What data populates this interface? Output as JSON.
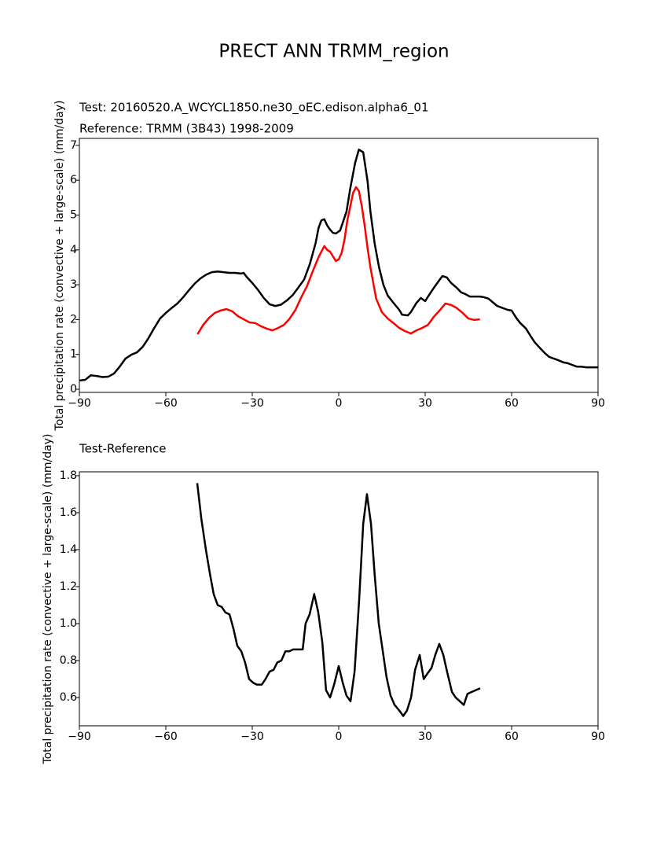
{
  "title": "PRECT ANN TRMM_region",
  "chart_data": [
    {
      "type": "line",
      "ylabel": "Total precipitation rate (convective + large-scale) (mm/day)",
      "xlim": [
        -90,
        90
      ],
      "xticks": [
        {
          "value": -90,
          "label": "−90"
        },
        {
          "value": -60,
          "label": "−60"
        },
        {
          "value": -30,
          "label": "−30"
        },
        0,
        30,
        60,
        90
      ],
      "ylim": [
        -0.09,
        7.2
      ],
      "yticks": [
        0,
        1,
        2,
        3,
        4,
        5,
        6,
        7
      ],
      "series": [
        {
          "name": "Test: 20160520.A_WCYCL1850.ne30_oEC.edison.alpha6_01",
          "color": "#000000",
          "x": [
            -90,
            -88,
            -86,
            -84,
            -82,
            -80,
            -78,
            -76,
            -74,
            -72,
            -70,
            -68,
            -66,
            -64,
            -62,
            -60,
            -58,
            -56,
            -54,
            -52,
            -50,
            -48,
            -46,
            -44,
            -42,
            -40,
            -38,
            -36,
            -34,
            -33,
            -32,
            -30,
            -28,
            -26,
            -24,
            -22,
            -20,
            -18,
            -16,
            -14,
            -12,
            -10,
            -8,
            -7,
            -6,
            -5,
            -4,
            -3,
            -2,
            -1,
            0.5,
            2.7,
            4,
            5.7,
            7,
            8.5,
            10,
            11,
            12.5,
            14,
            15.5,
            17,
            19,
            21,
            22,
            24,
            25,
            27,
            28.5,
            30,
            31,
            33,
            35,
            36,
            37.5,
            39,
            41,
            42.5,
            44,
            45.5,
            47,
            49,
            50.5,
            52,
            53.7,
            55,
            57,
            58.6,
            60,
            61.6,
            63,
            65,
            66.5,
            68,
            70,
            71.5,
            73,
            74.7,
            76,
            78,
            79.4,
            81,
            82.6,
            84,
            86,
            87.5,
            90
          ],
          "values": [
            0.25,
            0.27,
            0.4,
            0.38,
            0.35,
            0.36,
            0.45,
            0.65,
            0.88,
            0.99,
            1.06,
            1.22,
            1.47,
            1.76,
            2.03,
            2.19,
            2.33,
            2.46,
            2.64,
            2.84,
            3.03,
            3.18,
            3.29,
            3.36,
            3.38,
            3.36,
            3.34,
            3.34,
            3.32,
            3.34,
            3.23,
            3.05,
            2.85,
            2.62,
            2.44,
            2.39,
            2.43,
            2.55,
            2.7,
            2.92,
            3.15,
            3.6,
            4.2,
            4.63,
            4.85,
            4.88,
            4.7,
            4.58,
            4.49,
            4.47,
            4.56,
            5.1,
            5.76,
            6.5,
            6.88,
            6.8,
            5.98,
            5.1,
            4.17,
            3.5,
            3.0,
            2.69,
            2.48,
            2.28,
            2.14,
            2.12,
            2.21,
            2.48,
            2.62,
            2.53,
            2.66,
            2.91,
            3.14,
            3.25,
            3.21,
            3.05,
            2.91,
            2.78,
            2.73,
            2.66,
            2.66,
            2.66,
            2.64,
            2.6,
            2.48,
            2.39,
            2.33,
            2.28,
            2.26,
            2.05,
            1.9,
            1.74,
            1.54,
            1.35,
            1.17,
            1.04,
            0.93,
            0.88,
            0.84,
            0.77,
            0.75,
            0.7,
            0.65,
            0.65,
            0.63,
            0.63,
            0.63
          ]
        },
        {
          "name": "Reference: TRMM (3B43) 1998-2009",
          "color": "#ff0000",
          "x": [
            -49,
            -47,
            -45,
            -43,
            -41,
            -39,
            -37,
            -35,
            -33,
            -31,
            -29,
            -27,
            -25,
            -23,
            -21,
            -19,
            -17,
            -15,
            -13,
            -11,
            -9,
            -7,
            -5,
            -4,
            -3,
            -1,
            0,
            1,
            2,
            3,
            5,
            6,
            7,
            8,
            9,
            10,
            11,
            13,
            15,
            17,
            19,
            21,
            23,
            25,
            27,
            29,
            31,
            33,
            35,
            37,
            39,
            41,
            43,
            45,
            47,
            49
          ],
          "values": [
            1.58,
            1.85,
            2.05,
            2.19,
            2.26,
            2.3,
            2.24,
            2.1,
            2.01,
            1.92,
            1.9,
            1.81,
            1.74,
            1.69,
            1.76,
            1.85,
            2.03,
            2.28,
            2.64,
            2.96,
            3.39,
            3.79,
            4.11,
            4.0,
            3.95,
            3.68,
            3.73,
            3.91,
            4.29,
            4.85,
            5.64,
            5.8,
            5.69,
            5.26,
            4.7,
            4.06,
            3.5,
            2.6,
            2.21,
            2.03,
            1.9,
            1.76,
            1.67,
            1.6,
            1.69,
            1.76,
            1.85,
            2.08,
            2.26,
            2.46,
            2.42,
            2.33,
            2.19,
            2.03,
            1.99,
            2.01
          ]
        }
      ]
    },
    {
      "type": "line",
      "subtitle": "Test-Reference",
      "ylabel": "Total precipitation rate (convective + large-scale) (mm/day)",
      "xlim": [
        -90,
        90
      ],
      "xticks": [
        {
          "value": -90,
          "label": "−90"
        },
        {
          "value": -60,
          "label": "−60"
        },
        {
          "value": -30,
          "label": "−30"
        },
        0,
        30,
        60,
        90
      ],
      "ylim": [
        0.447,
        1.821
      ],
      "yticks": [
        0.6,
        0.8,
        {
          "value": 1,
          "label": "1.0"
        },
        1.2,
        1.4,
        1.6,
        1.8
      ],
      "series": [
        {
          "color": "#000000",
          "x": [
            -49.1,
            -47.7,
            -46.1,
            -44.7,
            -43.4,
            -42,
            -40.6,
            -39.3,
            -37.9,
            -36.5,
            -35.2,
            -33.8,
            -32.5,
            -31.1,
            -29.7,
            -28.4,
            -26.7,
            -25.4,
            -24,
            -22.6,
            -21.3,
            -19.9,
            -18.5,
            -17.2,
            -15.8,
            -14.5,
            -12.5,
            -11.5,
            -10.1,
            -8.5,
            -7.1,
            -5.7,
            -4.4,
            -3,
            -1.6,
            0,
            1.4,
            2.7,
            4.1,
            5.5,
            7.1,
            8.5,
            9.8,
            11.2,
            12.5,
            13.9,
            15.3,
            16.6,
            18,
            19.4,
            21,
            22.4,
            23.7,
            25.1,
            26.5,
            28.1,
            29.5,
            30.8,
            32.2,
            33.5,
            34.9,
            36.3,
            37.6,
            39.3,
            40.6,
            42,
            43.4,
            44.7,
            46.1,
            49.1
          ],
          "values": [
            1.76,
            1.57,
            1.4,
            1.27,
            1.16,
            1.1,
            1.09,
            1.06,
            1.05,
            0.97,
            0.88,
            0.85,
            0.79,
            0.7,
            0.68,
            0.67,
            0.67,
            0.7,
            0.74,
            0.75,
            0.79,
            0.8,
            0.85,
            0.85,
            0.86,
            0.86,
            0.86,
            1.0,
            1.05,
            1.16,
            1.06,
            0.9,
            0.64,
            0.6,
            0.67,
            0.77,
            0.68,
            0.61,
            0.58,
            0.74,
            1.13,
            1.54,
            1.7,
            1.54,
            1.26,
            1.0,
            0.85,
            0.71,
            0.61,
            0.56,
            0.53,
            0.5,
            0.53,
            0.6,
            0.75,
            0.83,
            0.7,
            0.73,
            0.76,
            0.83,
            0.89,
            0.83,
            0.74,
            0.63,
            0.6,
            0.58,
            0.56,
            0.62,
            0.63,
            0.65
          ]
        }
      ]
    }
  ]
}
